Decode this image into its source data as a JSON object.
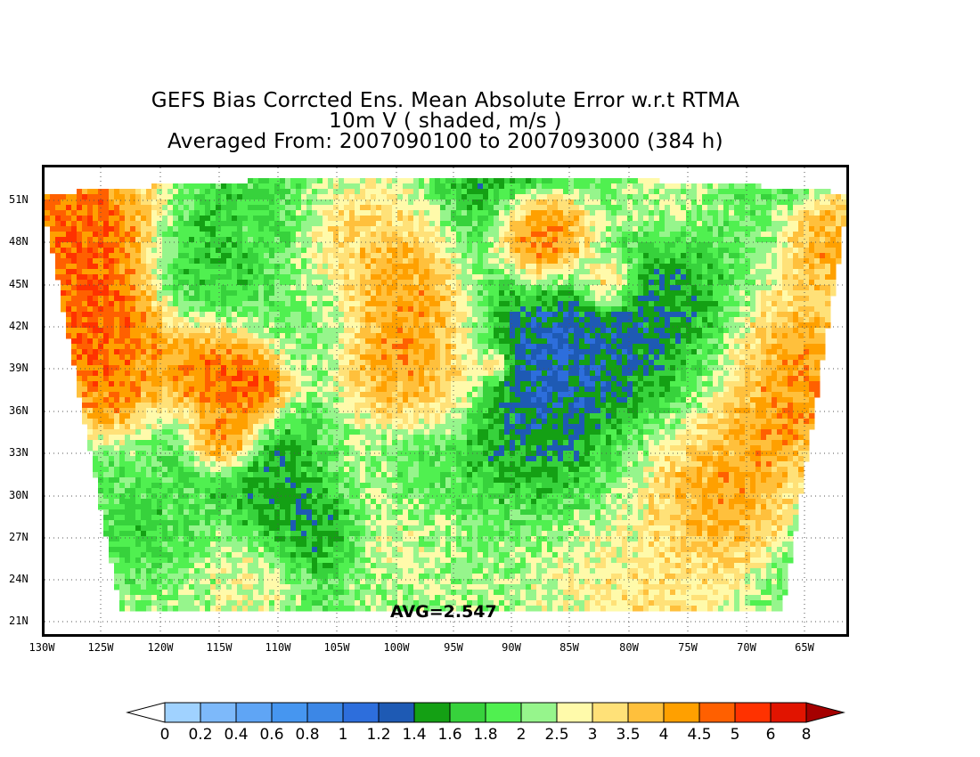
{
  "title": {
    "line1": "GEFS Bias Corrcted Ens. Mean Absolute Error w.r.t RTMA",
    "line2": "10m V ( shaded, m/s )",
    "line3": "Averaged From: 2007090100 to 2007093000 (384 h)"
  },
  "stat_label": "AVG=2.547",
  "map": {
    "lat_labels": [
      "51N",
      "48N",
      "45N",
      "42N",
      "39N",
      "36N",
      "33N",
      "30N",
      "27N",
      "24N",
      "21N"
    ],
    "lon_labels": [
      "130W",
      "125W",
      "120W",
      "115W",
      "110W",
      "105W",
      "100W",
      "95W",
      "90W",
      "85W",
      "80W",
      "75W",
      "70W",
      "65W"
    ],
    "extent": {
      "lon_min": -130,
      "lon_max": -62,
      "lat_min": 20,
      "lat_max": 53
    },
    "grid": "dotted",
    "projection": "lambert-conformal"
  },
  "colorbar": {
    "labels": [
      "0",
      "0.2",
      "0.4",
      "0.6",
      "0.8",
      "1",
      "1.2",
      "1.4",
      "1.6",
      "1.8",
      "2",
      "2.5",
      "3",
      "3.5",
      "4",
      "4.5",
      "5",
      "6",
      "8"
    ],
    "colors": [
      "#a0d2ff",
      "#7db9fa",
      "#5fa5f5",
      "#4696f0",
      "#3c87e6",
      "#2d6edc",
      "#1e5ab4",
      "#14a014",
      "#37d23c",
      "#50f050",
      "#96f58c",
      "#fffaaa",
      "#ffe178",
      "#ffc03c",
      "#ffa000",
      "#ff6000",
      "#ff3200",
      "#e11400",
      "#a50000"
    ],
    "under_color": "#ffffff",
    "over_color": "#a50000"
  }
}
